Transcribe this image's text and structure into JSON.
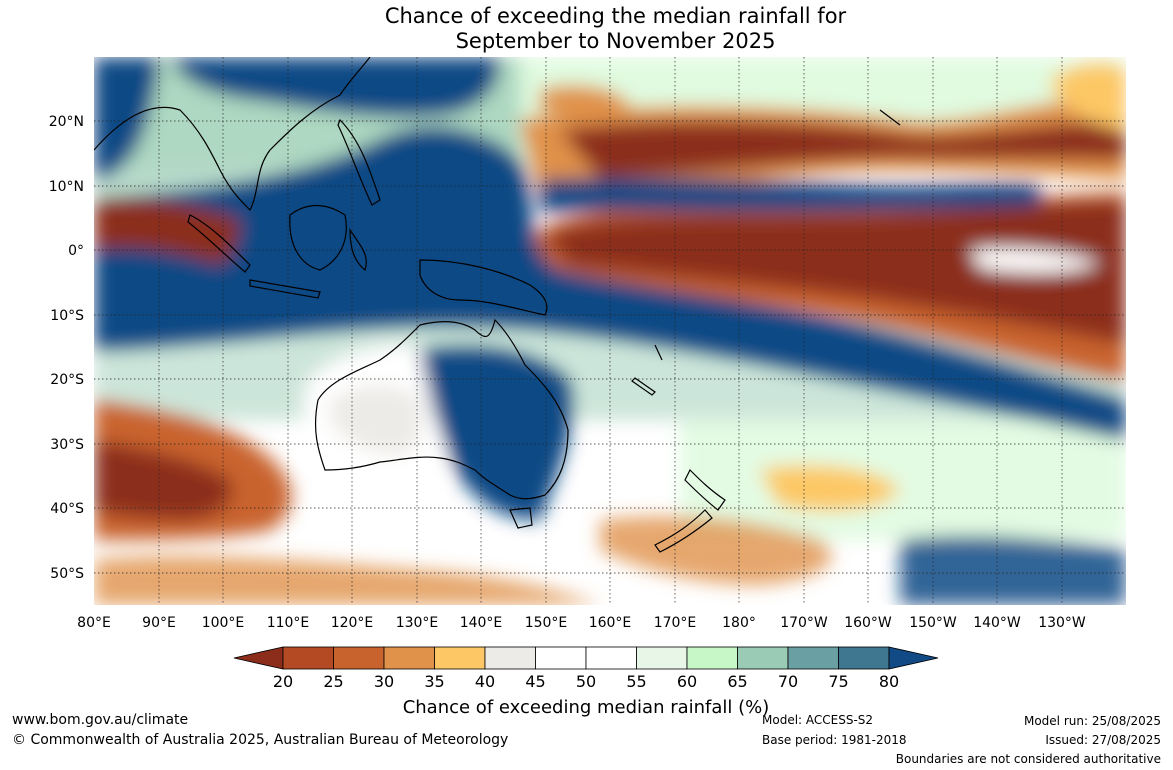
{
  "title": {
    "line1": "Chance of exceeding the median rainfall for",
    "line2": "September to November 2025"
  },
  "map": {
    "lon_labels": [
      "80°E",
      "90°E",
      "100°E",
      "110°E",
      "120°E",
      "130°E",
      "140°E",
      "150°E",
      "160°E",
      "170°E",
      "180°",
      "170°W",
      "160°W",
      "150°W",
      "140°W",
      "130°W"
    ],
    "lat_labels": [
      "20°N",
      "10°N",
      "0°",
      "10°S",
      "20°S",
      "30°S",
      "40°S",
      "50°S"
    ],
    "projection_extent": {
      "lon_min": 80,
      "lon_max": 240,
      "lat_min": -55,
      "lat_max": 30
    }
  },
  "colorbar": {
    "ticks": [
      "20",
      "25",
      "30",
      "35",
      "40",
      "45",
      "50",
      "55",
      "60",
      "65",
      "70",
      "75",
      "80"
    ],
    "colors": [
      "#8c2d1b",
      "#b34a24",
      "#c9632e",
      "#e0914a",
      "#fdc765",
      "#edebe7",
      "#ffffff",
      "#ffffff",
      "#e8f6e8",
      "#c7f7c7",
      "#9acbb5",
      "#6a9fa3",
      "#3f7690",
      "#114a85"
    ],
    "label": "Chance of exceeding median rainfall (%)"
  },
  "footer": {
    "website": "www.bom.gov.au/climate",
    "copyright": "© Commonwealth of Australia 2025, Australian Bureau of Meteorology",
    "model": "Model: ACCESS-S2",
    "base_period": "Base period: 1981-2018",
    "model_run": "Model run: 25/08/2025",
    "issued": "Issued: 27/08/2025",
    "disclaimer": "Boundaries are not considered authoritative"
  }
}
